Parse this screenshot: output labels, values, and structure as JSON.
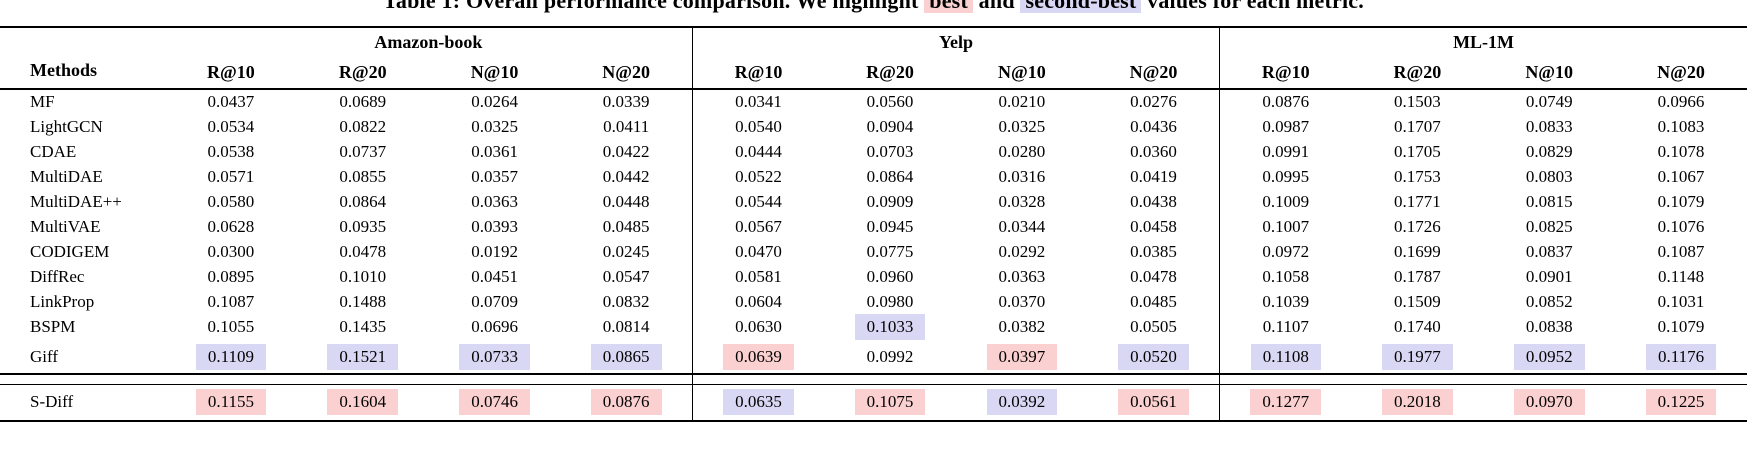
{
  "caption": {
    "segments": [
      {
        "text": "Table 1: Overall performance comparison. We highlight ",
        "hl": null
      },
      {
        "text": "best",
        "hl": "best"
      },
      {
        "text": " and ",
        "hl": null
      },
      {
        "text": "second-best",
        "hl": "second"
      },
      {
        "text": " values for each metric.",
        "hl": null
      }
    ]
  },
  "colors": {
    "best_highlight": "#fbd0d0",
    "second_best_highlight": "#d9d8f4"
  },
  "table": {
    "methods_header": "Methods",
    "groups": [
      {
        "name": "Amazon-book",
        "metrics": [
          "R@10",
          "R@20",
          "N@10",
          "N@20"
        ]
      },
      {
        "name": "Yelp",
        "metrics": [
          "R@10",
          "R@20",
          "N@10",
          "N@20"
        ]
      },
      {
        "name": "ML-1M",
        "metrics": [
          "R@10",
          "R@20",
          "N@10",
          "N@20"
        ]
      }
    ],
    "rows": [
      {
        "method": "MF",
        "values": [
          "0.0437",
          "0.0689",
          "0.0264",
          "0.0339",
          "0.0341",
          "0.0560",
          "0.0210",
          "0.0276",
          "0.0876",
          "0.1503",
          "0.0749",
          "0.0966"
        ],
        "highlights": [
          null,
          null,
          null,
          null,
          null,
          null,
          null,
          null,
          null,
          null,
          null,
          null
        ]
      },
      {
        "method": "LightGCN",
        "values": [
          "0.0534",
          "0.0822",
          "0.0325",
          "0.0411",
          "0.0540",
          "0.0904",
          "0.0325",
          "0.0436",
          "0.0987",
          "0.1707",
          "0.0833",
          "0.1083"
        ],
        "highlights": [
          null,
          null,
          null,
          null,
          null,
          null,
          null,
          null,
          null,
          null,
          null,
          null
        ]
      },
      {
        "method": "CDAE",
        "values": [
          "0.0538",
          "0.0737",
          "0.0361",
          "0.0422",
          "0.0444",
          "0.0703",
          "0.0280",
          "0.0360",
          "0.0991",
          "0.1705",
          "0.0829",
          "0.1078"
        ],
        "highlights": [
          null,
          null,
          null,
          null,
          null,
          null,
          null,
          null,
          null,
          null,
          null,
          null
        ]
      },
      {
        "method": "MultiDAE",
        "values": [
          "0.0571",
          "0.0855",
          "0.0357",
          "0.0442",
          "0.0522",
          "0.0864",
          "0.0316",
          "0.0419",
          "0.0995",
          "0.1753",
          "0.0803",
          "0.1067"
        ],
        "highlights": [
          null,
          null,
          null,
          null,
          null,
          null,
          null,
          null,
          null,
          null,
          null,
          null
        ]
      },
      {
        "method": "MultiDAE++",
        "values": [
          "0.0580",
          "0.0864",
          "0.0363",
          "0.0448",
          "0.0544",
          "0.0909",
          "0.0328",
          "0.0438",
          "0.1009",
          "0.1771",
          "0.0815",
          "0.1079"
        ],
        "highlights": [
          null,
          null,
          null,
          null,
          null,
          null,
          null,
          null,
          null,
          null,
          null,
          null
        ]
      },
      {
        "method": "MultiVAE",
        "values": [
          "0.0628",
          "0.0935",
          "0.0393",
          "0.0485",
          "0.0567",
          "0.0945",
          "0.0344",
          "0.0458",
          "0.1007",
          "0.1726",
          "0.0825",
          "0.1076"
        ],
        "highlights": [
          null,
          null,
          null,
          null,
          null,
          null,
          null,
          null,
          null,
          null,
          null,
          null
        ]
      },
      {
        "method": "CODIGEM",
        "values": [
          "0.0300",
          "0.0478",
          "0.0192",
          "0.0245",
          "0.0470",
          "0.0775",
          "0.0292",
          "0.0385",
          "0.0972",
          "0.1699",
          "0.0837",
          "0.1087"
        ],
        "highlights": [
          null,
          null,
          null,
          null,
          null,
          null,
          null,
          null,
          null,
          null,
          null,
          null
        ]
      },
      {
        "method": "DiffRec",
        "values": [
          "0.0895",
          "0.1010",
          "0.0451",
          "0.0547",
          "0.0581",
          "0.0960",
          "0.0363",
          "0.0478",
          "0.1058",
          "0.1787",
          "0.0901",
          "0.1148"
        ],
        "highlights": [
          null,
          null,
          null,
          null,
          null,
          null,
          null,
          null,
          null,
          null,
          null,
          null
        ]
      },
      {
        "method": "LinkProp",
        "values": [
          "0.1087",
          "0.1488",
          "0.0709",
          "0.0832",
          "0.0604",
          "0.0980",
          "0.0370",
          "0.0485",
          "0.1039",
          "0.1509",
          "0.0852",
          "0.1031"
        ],
        "highlights": [
          null,
          null,
          null,
          null,
          null,
          null,
          null,
          null,
          null,
          null,
          null,
          null
        ]
      },
      {
        "method": "BSPM",
        "values": [
          "0.1055",
          "0.1435",
          "0.0696",
          "0.0814",
          "0.0630",
          "0.1033",
          "0.0382",
          "0.0505",
          "0.1107",
          "0.1740",
          "0.0838",
          "0.1079"
        ],
        "highlights": [
          null,
          null,
          null,
          null,
          null,
          "second",
          null,
          null,
          null,
          null,
          null,
          null
        ]
      },
      {
        "method": "Giff",
        "values": [
          "0.1109",
          "0.1521",
          "0.0733",
          "0.0865",
          "0.0639",
          "0.0992",
          "0.0397",
          "0.0520",
          "0.1108",
          "0.1977",
          "0.0952",
          "0.1176"
        ],
        "highlights": [
          "second",
          "second",
          "second",
          "second",
          "best",
          null,
          "best",
          "second",
          "second",
          "second",
          "second",
          "second"
        ]
      },
      {
        "method": "S-Diff",
        "values": [
          "0.1155",
          "0.1604",
          "0.0746",
          "0.0876",
          "0.0635",
          "0.1075",
          "0.0392",
          "0.0561",
          "0.1277",
          "0.2018",
          "0.0970",
          "0.1225"
        ],
        "highlights": [
          "best",
          "best",
          "best",
          "best",
          "second",
          "best",
          "second",
          "best",
          "best",
          "best",
          "best",
          "best"
        ]
      }
    ]
  }
}
